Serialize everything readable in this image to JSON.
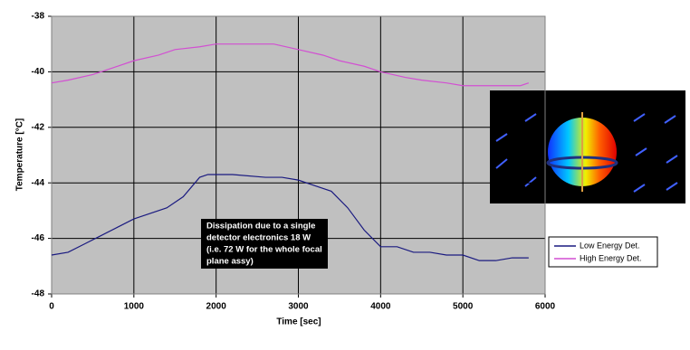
{
  "chart_data": {
    "type": "line",
    "x_label": "Time [sec]",
    "y_label": "Temperature [°C]",
    "xlim": [
      0,
      6000
    ],
    "xticks": [
      0,
      1000,
      2000,
      3000,
      4000,
      5000,
      6000
    ],
    "ylim": [
      -48,
      -38
    ],
    "yticks": [
      -48,
      -46,
      -44,
      -42,
      -40,
      -38
    ],
    "grid": true,
    "legend": "right",
    "annotation": [
      "Dissipation due to a single",
      "detector electronics 18 W",
      "(i.e. 72 W for the whole focal",
      "plane assy)"
    ],
    "series": [
      {
        "name": "Low Energy Det.",
        "color": "#1a1a80",
        "x": [
          0,
          200,
          400,
          600,
          800,
          1000,
          1200,
          1400,
          1600,
          1800,
          1900,
          2200,
          2600,
          2800,
          3000,
          3200,
          3400,
          3600,
          3800,
          4000,
          4200,
          4400,
          4600,
          4800,
          5000,
          5200,
          5400,
          5600,
          5800
        ],
        "values": [
          -46.6,
          -46.5,
          -46.2,
          -45.9,
          -45.6,
          -45.3,
          -45.1,
          -44.9,
          -44.5,
          -43.8,
          -43.7,
          -43.7,
          -43.8,
          -43.8,
          -43.9,
          -44.1,
          -44.3,
          -44.9,
          -45.7,
          -46.3,
          -46.3,
          -46.5,
          -46.5,
          -46.6,
          -46.6,
          -46.8,
          -46.8,
          -46.7,
          -46.7
        ]
      },
      {
        "name": "High Energy Det.",
        "color": "#d24fd2",
        "x": [
          0,
          200,
          500,
          800,
          1000,
          1300,
          1500,
          1800,
          2000,
          2400,
          2700,
          3000,
          3300,
          3500,
          3800,
          4000,
          4300,
          4500,
          4800,
          5000,
          5300,
          5700,
          5800
        ],
        "values": [
          -40.4,
          -40.3,
          -40.1,
          -39.8,
          -39.6,
          -39.4,
          -39.2,
          -39.1,
          -39.0,
          -39.0,
          -39.0,
          -39.2,
          -39.4,
          -39.6,
          -39.8,
          -40.0,
          -40.2,
          -40.3,
          -40.4,
          -40.5,
          -40.5,
          -40.5,
          -40.4
        ]
      }
    ]
  }
}
